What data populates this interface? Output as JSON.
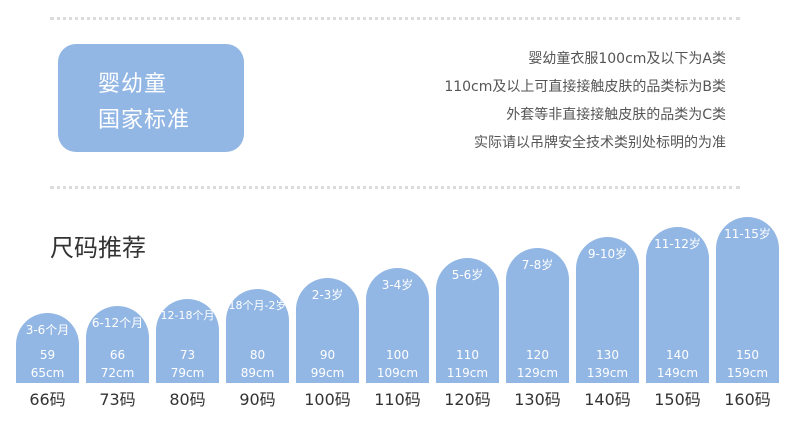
{
  "badge": {
    "line1": "婴幼童",
    "line2": "国家标准"
  },
  "notes": [
    "婴幼童衣服100cm及以下为A类",
    "110cm及以上可直接接触皮肤的品类标为B类",
    "外套等非直接接触皮肤的品类为C类",
    "实际请以吊牌安全技术类别处标明的为准"
  ],
  "section_title": "尺码推荐",
  "colors": {
    "bar": "#93b7e4",
    "badge": "#93b7e4",
    "text": "#333333"
  },
  "chart_data": {
    "type": "bar",
    "categories": [
      "66码",
      "73码",
      "80码",
      "90码",
      "100码",
      "110码",
      "120码",
      "130码",
      "140码",
      "150码",
      "160码"
    ],
    "age_labels": [
      "3-6个月",
      "6-12个月",
      "12-18个月",
      "18个月-2岁",
      "2-3岁",
      "3-4岁",
      "5-6岁",
      "7-8岁",
      "9-10岁",
      "11-12岁",
      "11-15岁"
    ],
    "value_labels": [
      "59",
      "66",
      "73",
      "80",
      "90",
      "100",
      "110",
      "120",
      "130",
      "140",
      "150"
    ],
    "height_labels": [
      "65cm",
      "72cm",
      "79cm",
      "89cm",
      "99cm",
      "109cm",
      "119cm",
      "129cm",
      "139cm",
      "149cm",
      "159cm"
    ],
    "values": [
      65,
      72,
      79,
      89,
      99,
      109,
      119,
      129,
      139,
      149,
      159
    ]
  }
}
